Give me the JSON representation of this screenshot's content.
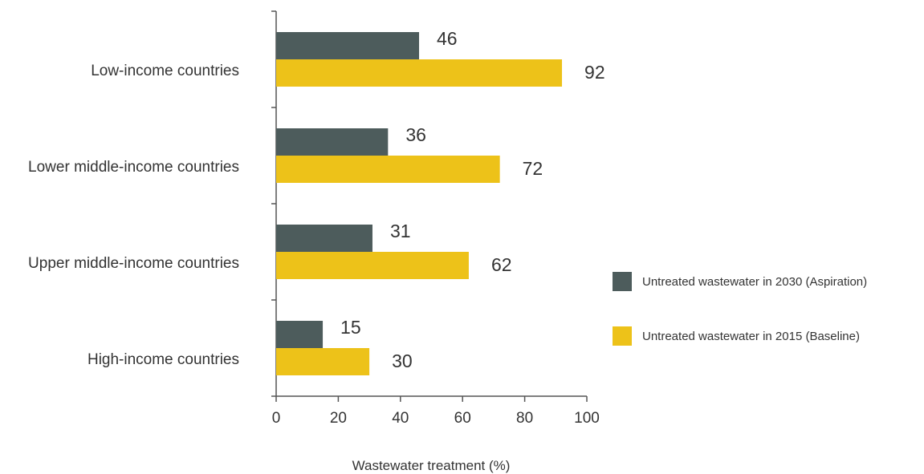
{
  "chart_data": {
    "type": "bar",
    "orientation": "horizontal",
    "categories": [
      "Low-income countries",
      "Lower middle-income countries",
      "Upper middle-income countries",
      "High-income countries"
    ],
    "series": [
      {
        "name": "Untreated wastewater in 2030 (Aspiration)",
        "color": "#4d5c5c",
        "values": [
          46,
          36,
          31,
          15
        ]
      },
      {
        "name": "Untreated wastewater in 2015 (Baseline)",
        "color": "#edc219",
        "values": [
          92,
          72,
          62,
          30
        ]
      }
    ],
    "xlabel": "Wastewater treatment (%)",
    "ylabel": "",
    "xlim": [
      0,
      100
    ],
    "xticks": [
      "0",
      "20",
      "40",
      "60",
      "80",
      "100"
    ],
    "grid": false,
    "legend_position": "right"
  }
}
